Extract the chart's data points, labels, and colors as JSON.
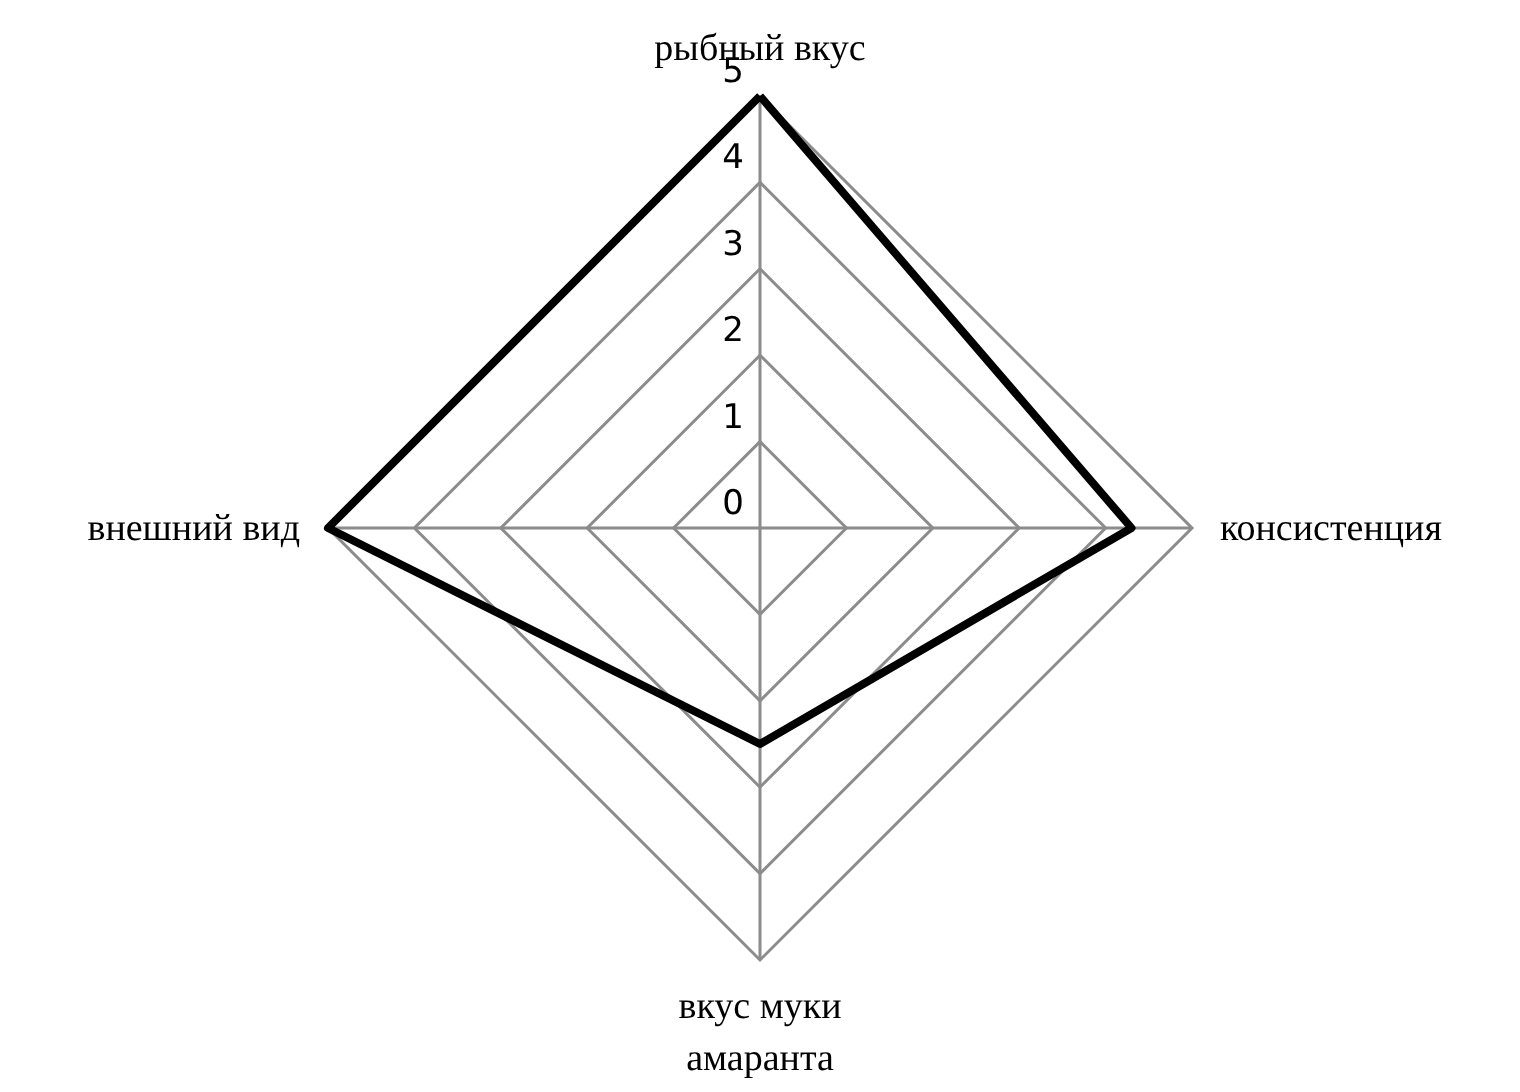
{
  "chart_data": {
    "type": "radar",
    "categories": [
      "рыбный вкус",
      "консистенция",
      "вкус муки амаранта",
      "внешний вид"
    ],
    "series": [
      {
        "color": "#000000",
        "values": [
          5,
          4.3,
          2.5,
          5
        ]
      }
    ],
    "ylim": [
      0,
      5
    ],
    "yticks": [
      0,
      1,
      2,
      3,
      4,
      5
    ],
    "grid": true,
    "marker": "none",
    "line_style": "solid"
  }
}
